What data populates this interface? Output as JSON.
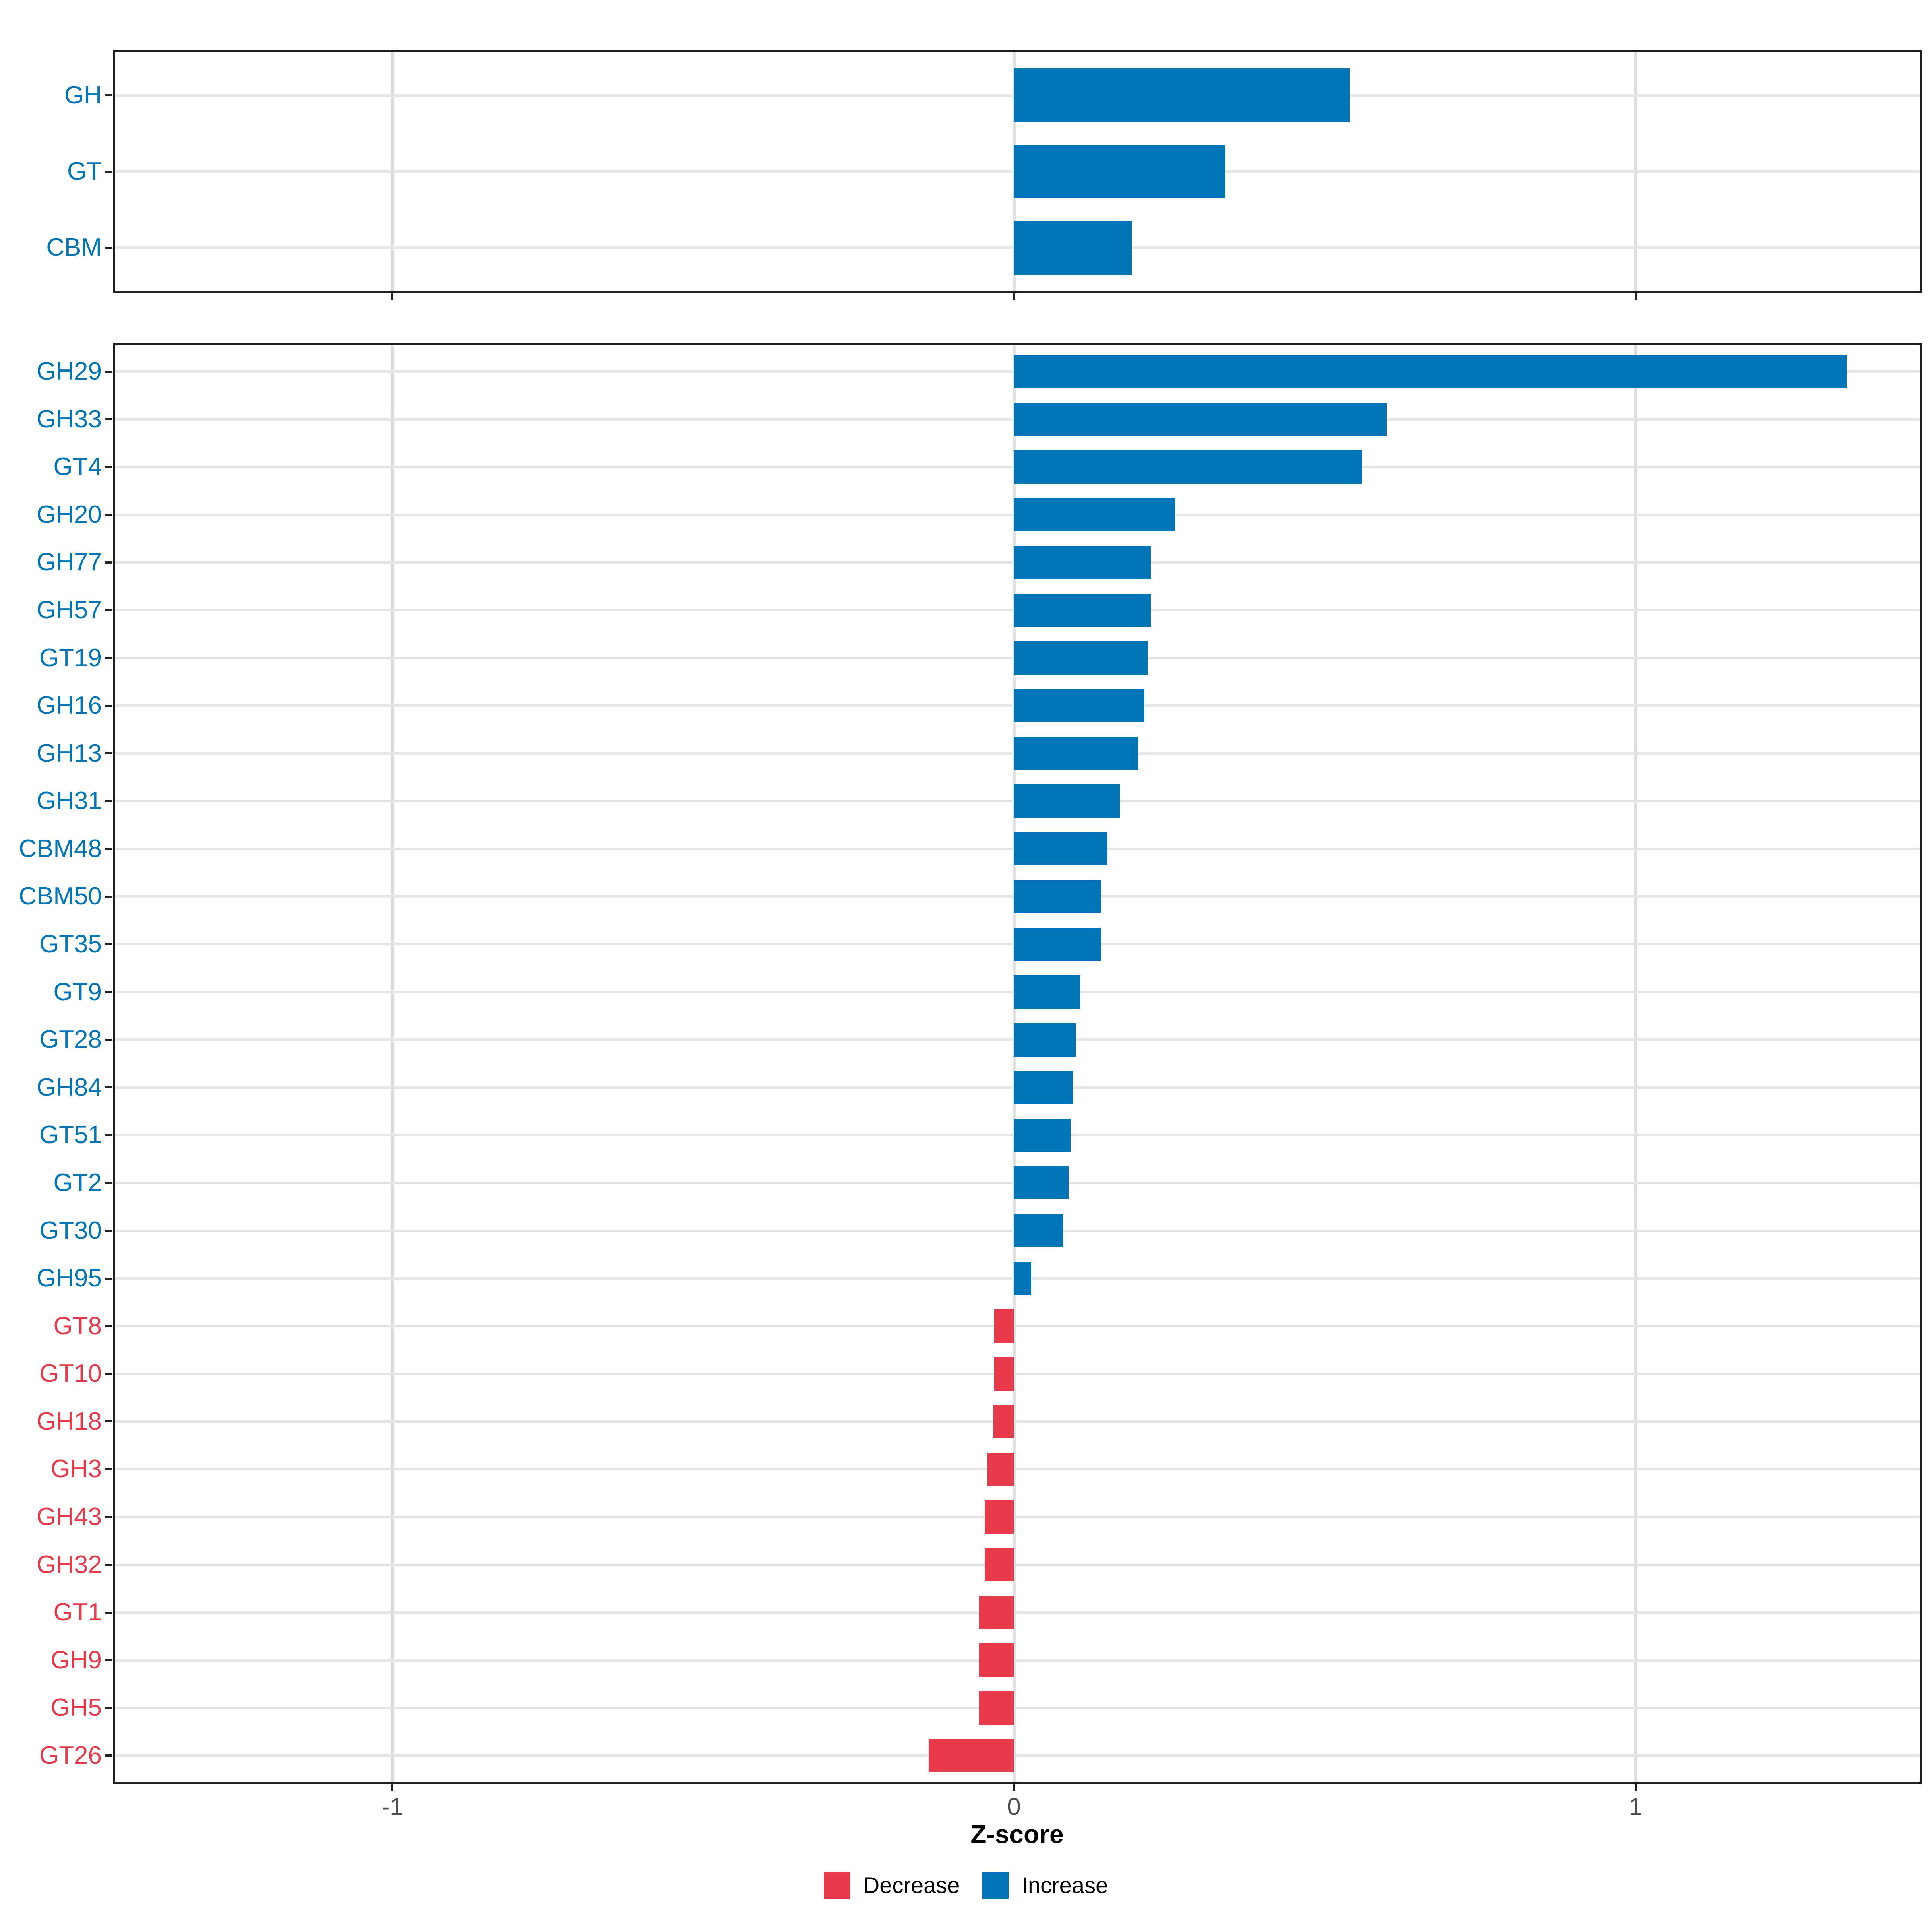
{
  "figure": {
    "title": "",
    "xlabel": "Z-score",
    "colors": {
      "increase": "#0075b6",
      "decrease": "#e6394a",
      "grid": "#e5e5e5",
      "panel_border": "#1f1f1f",
      "tick_label": "#4d4d4d"
    },
    "x_axis": {
      "ticks": [
        -1,
        0,
        1
      ],
      "tick_labels": [
        "-1",
        "0",
        "1"
      ],
      "range": [
        -1.45,
        1.461
      ]
    },
    "legend": [
      {
        "label": "Decrease",
        "group": "decrease",
        "color": "#e6394a"
      },
      {
        "label": "Increase",
        "group": "increase",
        "color": "#0075b6"
      }
    ]
  },
  "chart_data": [
    {
      "type": "bar",
      "orientation": "horizontal",
      "panel": "top",
      "title": "",
      "xlabel": "Z-score",
      "ylabel": "",
      "xlim": [
        -1.45,
        1.461
      ],
      "grid": true,
      "categories": [
        "GH",
        "GT",
        "CBM"
      ],
      "values": [
        0.54,
        0.34,
        0.19
      ],
      "groups": [
        "increase",
        "increase",
        "increase"
      ]
    },
    {
      "type": "bar",
      "orientation": "horizontal",
      "panel": "bottom",
      "title": "",
      "xlabel": "Z-score",
      "ylabel": "",
      "xlim": [
        -1.45,
        1.461
      ],
      "grid": true,
      "categories": [
        "GH29",
        "GH33",
        "GT4",
        "GH20",
        "GH77",
        "GH57",
        "GT19",
        "GH16",
        "GH13",
        "GH31",
        "CBM48",
        "CBM50",
        "GT35",
        "GT9",
        "GT28",
        "GH84",
        "GT51",
        "GT2",
        "GT30",
        "GH95",
        "GT8",
        "GT10",
        "GH18",
        "GH3",
        "GH43",
        "GH32",
        "GT1",
        "GH9",
        "GH5",
        "GT26"
      ],
      "values": [
        1.34,
        0.6,
        0.56,
        0.26,
        0.22,
        0.22,
        0.215,
        0.21,
        0.2,
        0.17,
        0.15,
        0.14,
        0.14,
        0.107,
        0.1,
        0.095,
        0.091,
        0.088,
        0.079,
        0.028,
        -0.032,
        -0.032,
        -0.033,
        -0.043,
        -0.047,
        -0.047,
        -0.056,
        -0.056,
        -0.056,
        -0.137
      ],
      "groups": [
        "increase",
        "increase",
        "increase",
        "increase",
        "increase",
        "increase",
        "increase",
        "increase",
        "increase",
        "increase",
        "increase",
        "increase",
        "increase",
        "increase",
        "increase",
        "increase",
        "increase",
        "increase",
        "increase",
        "increase",
        "decrease",
        "decrease",
        "decrease",
        "decrease",
        "decrease",
        "decrease",
        "decrease",
        "decrease",
        "decrease",
        "decrease"
      ]
    }
  ]
}
